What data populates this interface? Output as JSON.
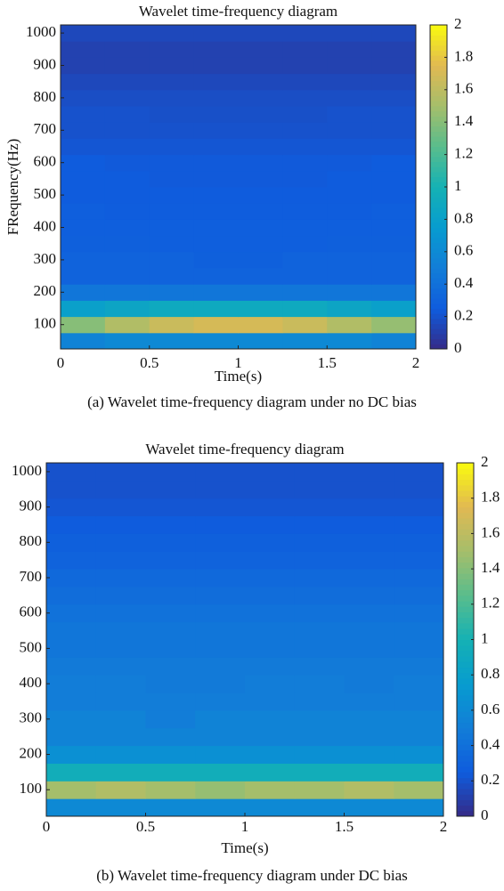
{
  "chart_data": [
    {
      "type": "heatmap",
      "title": "Wavelet time-frequency diagram",
      "caption": "(a) Wavelet time-frequency diagram under no DC bias",
      "xlabel": "Time(s)",
      "ylabel": "FRequency(Hz)",
      "colormap": "parula",
      "xbins": [
        0,
        0.25,
        0.5,
        0.75,
        1,
        1.25,
        1.5,
        1.75,
        2
      ],
      "ybins": [
        25,
        75,
        125,
        175,
        225,
        275,
        325,
        375,
        425,
        475,
        525,
        575,
        625,
        675,
        725,
        775,
        825,
        875,
        925,
        975,
        1025
      ],
      "values": [
        [
          0.55,
          0.6,
          0.6,
          0.6,
          0.6,
          0.6,
          0.6,
          0.55
        ],
        [
          1.4,
          1.55,
          1.65,
          1.7,
          1.7,
          1.65,
          1.55,
          1.45
        ],
        [
          0.8,
          0.85,
          0.9,
          0.9,
          0.9,
          0.9,
          0.85,
          0.8
        ],
        [
          0.45,
          0.45,
          0.45,
          0.45,
          0.45,
          0.45,
          0.45,
          0.45
        ],
        [
          0.3,
          0.3,
          0.3,
          0.3,
          0.3,
          0.3,
          0.3,
          0.3
        ],
        [
          0.3,
          0.3,
          0.3,
          0.28,
          0.28,
          0.3,
          0.3,
          0.3
        ],
        [
          0.28,
          0.28,
          0.27,
          0.27,
          0.27,
          0.27,
          0.28,
          0.28
        ],
        [
          0.27,
          0.27,
          0.27,
          0.27,
          0.27,
          0.27,
          0.27,
          0.27
        ],
        [
          0.27,
          0.26,
          0.26,
          0.26,
          0.26,
          0.26,
          0.26,
          0.27
        ],
        [
          0.25,
          0.25,
          0.25,
          0.25,
          0.25,
          0.25,
          0.25,
          0.25
        ],
        [
          0.25,
          0.25,
          0.24,
          0.24,
          0.24,
          0.24,
          0.25,
          0.25
        ],
        [
          0.25,
          0.24,
          0.24,
          0.24,
          0.24,
          0.24,
          0.24,
          0.25
        ],
        [
          0.22,
          0.22,
          0.22,
          0.22,
          0.22,
          0.22,
          0.22,
          0.22
        ],
        [
          0.2,
          0.2,
          0.2,
          0.2,
          0.2,
          0.2,
          0.2,
          0.2
        ],
        [
          0.2,
          0.2,
          0.19,
          0.19,
          0.19,
          0.19,
          0.2,
          0.2
        ],
        [
          0.18,
          0.18,
          0.18,
          0.18,
          0.18,
          0.18,
          0.18,
          0.18
        ],
        [
          0.15,
          0.15,
          0.15,
          0.15,
          0.15,
          0.15,
          0.15,
          0.15
        ],
        [
          0.12,
          0.12,
          0.12,
          0.12,
          0.12,
          0.12,
          0.12,
          0.12
        ],
        [
          0.12,
          0.12,
          0.12,
          0.12,
          0.12,
          0.12,
          0.12,
          0.12
        ],
        [
          0.15,
          0.15,
          0.15,
          0.15,
          0.15,
          0.15,
          0.15,
          0.15
        ]
      ],
      "xlim": [
        0,
        2
      ],
      "xticks": [
        0,
        0.5,
        1,
        1.5,
        2
      ],
      "ylim": [
        25,
        1025
      ],
      "yticks": [
        100,
        200,
        300,
        400,
        500,
        600,
        700,
        800,
        900,
        1000
      ],
      "clim": [
        0,
        2
      ],
      "cticks": [
        0,
        0.2,
        0.4,
        0.6,
        0.8,
        1,
        1.2,
        1.4,
        1.6,
        1.8,
        2
      ]
    },
    {
      "type": "heatmap",
      "title": "Wavelet time-frequency diagram",
      "caption": "(b) Wavelet time-frequency diagram under DC bias",
      "xlabel": "Time(s)",
      "colormap": "parula",
      "xbins": [
        0,
        0.25,
        0.5,
        0.75,
        1,
        1.25,
        1.5,
        1.75,
        2
      ],
      "ybins": [
        25,
        75,
        125,
        175,
        225,
        275,
        325,
        375,
        425,
        475,
        525,
        575,
        625,
        675,
        725,
        775,
        825,
        875,
        925,
        975,
        1025
      ],
      "values": [
        [
          0.6,
          0.6,
          0.6,
          0.6,
          0.6,
          0.6,
          0.6,
          0.6
        ],
        [
          1.5,
          1.55,
          1.5,
          1.45,
          1.5,
          1.5,
          1.55,
          1.5
        ],
        [
          0.95,
          0.95,
          0.95,
          0.95,
          0.95,
          0.95,
          0.95,
          0.95
        ],
        [
          0.65,
          0.65,
          0.65,
          0.65,
          0.65,
          0.65,
          0.65,
          0.65
        ],
        [
          0.55,
          0.55,
          0.55,
          0.55,
          0.55,
          0.55,
          0.55,
          0.55
        ],
        [
          0.55,
          0.55,
          0.5,
          0.55,
          0.55,
          0.55,
          0.55,
          0.55
        ],
        [
          0.5,
          0.5,
          0.5,
          0.5,
          0.5,
          0.5,
          0.5,
          0.5
        ],
        [
          0.5,
          0.5,
          0.48,
          0.48,
          0.5,
          0.5,
          0.48,
          0.5
        ],
        [
          0.48,
          0.48,
          0.48,
          0.48,
          0.48,
          0.48,
          0.48,
          0.48
        ],
        [
          0.45,
          0.45,
          0.45,
          0.45,
          0.45,
          0.45,
          0.45,
          0.45
        ],
        [
          0.45,
          0.45,
          0.45,
          0.45,
          0.45,
          0.45,
          0.45,
          0.45
        ],
        [
          0.42,
          0.42,
          0.42,
          0.42,
          0.42,
          0.42,
          0.42,
          0.42
        ],
        [
          0.38,
          0.38,
          0.38,
          0.38,
          0.38,
          0.38,
          0.38,
          0.38
        ],
        [
          0.35,
          0.35,
          0.35,
          0.35,
          0.35,
          0.35,
          0.35,
          0.35
        ],
        [
          0.3,
          0.3,
          0.3,
          0.3,
          0.3,
          0.3,
          0.3,
          0.3
        ],
        [
          0.28,
          0.28,
          0.28,
          0.28,
          0.28,
          0.28,
          0.28,
          0.28
        ],
        [
          0.25,
          0.25,
          0.25,
          0.25,
          0.25,
          0.25,
          0.25,
          0.25
        ],
        [
          0.22,
          0.22,
          0.22,
          0.22,
          0.22,
          0.22,
          0.22,
          0.22
        ],
        [
          0.2,
          0.2,
          0.2,
          0.2,
          0.2,
          0.2,
          0.2,
          0.2
        ],
        [
          0.2,
          0.2,
          0.2,
          0.2,
          0.2,
          0.2,
          0.2,
          0.2
        ]
      ],
      "xlim": [
        0,
        2
      ],
      "xticks": [
        0,
        0.5,
        1,
        1.5,
        2
      ],
      "ylim": [
        25,
        1025
      ],
      "yticks": [
        100,
        200,
        300,
        400,
        500,
        600,
        700,
        800,
        900,
        1000
      ],
      "clim": [
        0,
        2
      ],
      "cticks": [
        0,
        0.2,
        0.4,
        0.6,
        0.8,
        1,
        1.2,
        1.4,
        1.6,
        1.8,
        2
      ]
    }
  ]
}
